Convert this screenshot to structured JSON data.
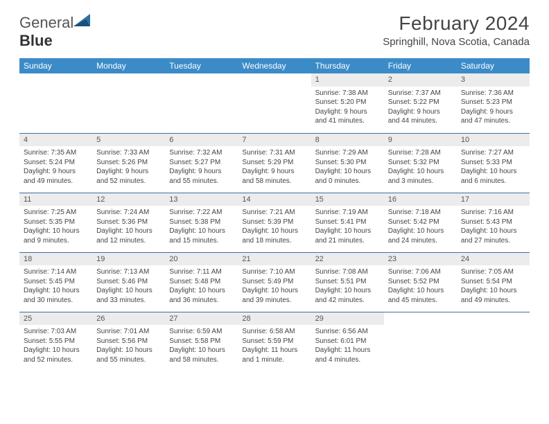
{
  "brand": {
    "word1": "General",
    "word2": "Blue"
  },
  "title": "February 2024",
  "location": "Springhill, Nova Scotia, Canada",
  "header_bg": "#3b8bc8",
  "rule_color": "#3b6fa0",
  "daynum_bg": "#ececec",
  "weekdays": [
    "Sunday",
    "Monday",
    "Tuesday",
    "Wednesday",
    "Thursday",
    "Friday",
    "Saturday"
  ],
  "weeks": [
    [
      null,
      null,
      null,
      null,
      {
        "d": "1",
        "sr": "7:38 AM",
        "ss": "5:20 PM",
        "dl": "9 hours and 41 minutes."
      },
      {
        "d": "2",
        "sr": "7:37 AM",
        "ss": "5:22 PM",
        "dl": "9 hours and 44 minutes."
      },
      {
        "d": "3",
        "sr": "7:36 AM",
        "ss": "5:23 PM",
        "dl": "9 hours and 47 minutes."
      }
    ],
    [
      {
        "d": "4",
        "sr": "7:35 AM",
        "ss": "5:24 PM",
        "dl": "9 hours and 49 minutes."
      },
      {
        "d": "5",
        "sr": "7:33 AM",
        "ss": "5:26 PM",
        "dl": "9 hours and 52 minutes."
      },
      {
        "d": "6",
        "sr": "7:32 AM",
        "ss": "5:27 PM",
        "dl": "9 hours and 55 minutes."
      },
      {
        "d": "7",
        "sr": "7:31 AM",
        "ss": "5:29 PM",
        "dl": "9 hours and 58 minutes."
      },
      {
        "d": "8",
        "sr": "7:29 AM",
        "ss": "5:30 PM",
        "dl": "10 hours and 0 minutes."
      },
      {
        "d": "9",
        "sr": "7:28 AM",
        "ss": "5:32 PM",
        "dl": "10 hours and 3 minutes."
      },
      {
        "d": "10",
        "sr": "7:27 AM",
        "ss": "5:33 PM",
        "dl": "10 hours and 6 minutes."
      }
    ],
    [
      {
        "d": "11",
        "sr": "7:25 AM",
        "ss": "5:35 PM",
        "dl": "10 hours and 9 minutes."
      },
      {
        "d": "12",
        "sr": "7:24 AM",
        "ss": "5:36 PM",
        "dl": "10 hours and 12 minutes."
      },
      {
        "d": "13",
        "sr": "7:22 AM",
        "ss": "5:38 PM",
        "dl": "10 hours and 15 minutes."
      },
      {
        "d": "14",
        "sr": "7:21 AM",
        "ss": "5:39 PM",
        "dl": "10 hours and 18 minutes."
      },
      {
        "d": "15",
        "sr": "7:19 AM",
        "ss": "5:41 PM",
        "dl": "10 hours and 21 minutes."
      },
      {
        "d": "16",
        "sr": "7:18 AM",
        "ss": "5:42 PM",
        "dl": "10 hours and 24 minutes."
      },
      {
        "d": "17",
        "sr": "7:16 AM",
        "ss": "5:43 PM",
        "dl": "10 hours and 27 minutes."
      }
    ],
    [
      {
        "d": "18",
        "sr": "7:14 AM",
        "ss": "5:45 PM",
        "dl": "10 hours and 30 minutes."
      },
      {
        "d": "19",
        "sr": "7:13 AM",
        "ss": "5:46 PM",
        "dl": "10 hours and 33 minutes."
      },
      {
        "d": "20",
        "sr": "7:11 AM",
        "ss": "5:48 PM",
        "dl": "10 hours and 36 minutes."
      },
      {
        "d": "21",
        "sr": "7:10 AM",
        "ss": "5:49 PM",
        "dl": "10 hours and 39 minutes."
      },
      {
        "d": "22",
        "sr": "7:08 AM",
        "ss": "5:51 PM",
        "dl": "10 hours and 42 minutes."
      },
      {
        "d": "23",
        "sr": "7:06 AM",
        "ss": "5:52 PM",
        "dl": "10 hours and 45 minutes."
      },
      {
        "d": "24",
        "sr": "7:05 AM",
        "ss": "5:54 PM",
        "dl": "10 hours and 49 minutes."
      }
    ],
    [
      {
        "d": "25",
        "sr": "7:03 AM",
        "ss": "5:55 PM",
        "dl": "10 hours and 52 minutes."
      },
      {
        "d": "26",
        "sr": "7:01 AM",
        "ss": "5:56 PM",
        "dl": "10 hours and 55 minutes."
      },
      {
        "d": "27",
        "sr": "6:59 AM",
        "ss": "5:58 PM",
        "dl": "10 hours and 58 minutes."
      },
      {
        "d": "28",
        "sr": "6:58 AM",
        "ss": "5:59 PM",
        "dl": "11 hours and 1 minute."
      },
      {
        "d": "29",
        "sr": "6:56 AM",
        "ss": "6:01 PM",
        "dl": "11 hours and 4 minutes."
      },
      null,
      null
    ]
  ],
  "labels": {
    "sunrise": "Sunrise:",
    "sunset": "Sunset:",
    "daylight": "Daylight:"
  }
}
